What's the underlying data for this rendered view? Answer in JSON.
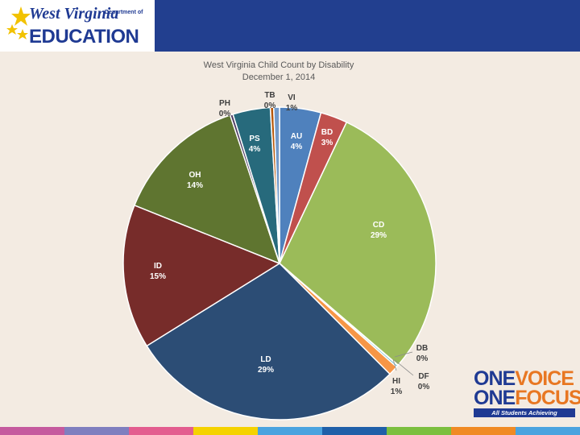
{
  "header": {
    "logo_script": "West Virginia",
    "logo_dept": "Department of",
    "logo_main": "EDUCATION"
  },
  "chart_data": {
    "type": "pie",
    "title": "West Virginia Child Count by Disability",
    "subtitle": "December  1, 2014",
    "start_angle_deg": 0,
    "direction": "clockwise",
    "slices": [
      {
        "code": "AU",
        "pct_label": "4%",
        "value": 4.3,
        "color": "#4f81bd"
      },
      {
        "code": "BD",
        "pct_label": "3%",
        "value": 2.8,
        "color": "#c0504d"
      },
      {
        "code": "CD",
        "pct_label": "29%",
        "value": 29.4,
        "color": "#9bbb59"
      },
      {
        "code": "DB",
        "pct_label": "0%",
        "value": 0.05,
        "color": "#8064a2"
      },
      {
        "code": "DF",
        "pct_label": "0%",
        "value": 0.2,
        "color": "#4bacc6"
      },
      {
        "code": "HI",
        "pct_label": "1%",
        "value": 1.0,
        "color": "#f79646"
      },
      {
        "code": "LD",
        "pct_label": "29%",
        "value": 28.8,
        "color": "#2c4d75"
      },
      {
        "code": "ID",
        "pct_label": "15%",
        "value": 15.0,
        "color": "#772c2a"
      },
      {
        "code": "OH",
        "pct_label": "14%",
        "value": 13.9,
        "color": "#5f7530"
      },
      {
        "code": "PH",
        "pct_label": "0%",
        "value": 0.3,
        "color": "#4d3b62"
      },
      {
        "code": "PS",
        "pct_label": "4%",
        "value": 3.9,
        "color": "#276a7c"
      },
      {
        "code": "TB",
        "pct_label": "0%",
        "value": 0.35,
        "color": "#b65708"
      },
      {
        "code": "VI",
        "pct_label": "1%",
        "value": 0.6,
        "color": "#729aca"
      }
    ]
  },
  "tagline": {
    "one1": "ONE",
    "voice": "VOICE",
    "one2": "ONE",
    "focus": "FOCUS",
    "sub": "All Students Achieving"
  },
  "footer": {
    "stripe_colors": [
      "#c55a9e",
      "#7f7fbf",
      "#e35d8f",
      "#f5d200",
      "#4aa3df",
      "#1f5fa8",
      "#7cbf3f",
      "#f08a24",
      "#4aa3df"
    ]
  }
}
